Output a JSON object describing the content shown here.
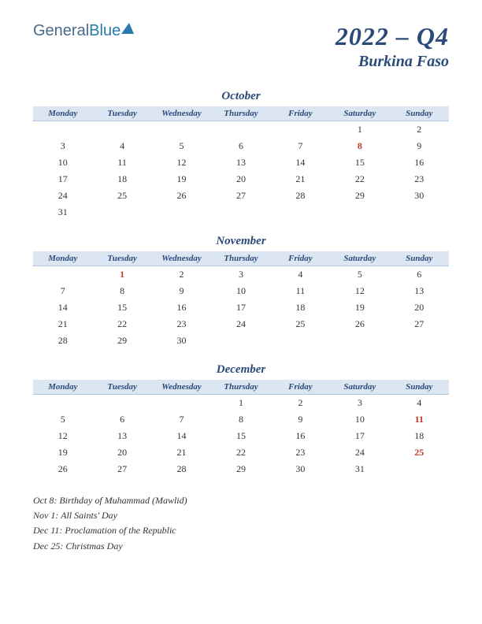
{
  "logo": {
    "part1": "General",
    "part2": "Blue"
  },
  "title": {
    "year_quarter": "2022 – Q4",
    "country": "Burkina Faso"
  },
  "day_headers": [
    "Monday",
    "Tuesday",
    "Wednesday",
    "Thursday",
    "Friday",
    "Saturday",
    "Sunday"
  ],
  "months": [
    {
      "name": "October",
      "weeks": [
        [
          "",
          "",
          "",
          "",
          "",
          "1",
          "2"
        ],
        [
          "3",
          "4",
          "5",
          "6",
          "7",
          "8",
          "9"
        ],
        [
          "10",
          "11",
          "12",
          "13",
          "14",
          "15",
          "16"
        ],
        [
          "17",
          "18",
          "19",
          "20",
          "21",
          "22",
          "23"
        ],
        [
          "24",
          "25",
          "26",
          "27",
          "28",
          "29",
          "30"
        ],
        [
          "31",
          "",
          "",
          "",
          "",
          "",
          ""
        ]
      ],
      "holidays": [
        "8"
      ]
    },
    {
      "name": "November",
      "weeks": [
        [
          "",
          "1",
          "2",
          "3",
          "4",
          "5",
          "6"
        ],
        [
          "7",
          "8",
          "9",
          "10",
          "11",
          "12",
          "13"
        ],
        [
          "14",
          "15",
          "16",
          "17",
          "18",
          "19",
          "20"
        ],
        [
          "21",
          "22",
          "23",
          "24",
          "25",
          "26",
          "27"
        ],
        [
          "28",
          "29",
          "30",
          "",
          "",
          "",
          ""
        ]
      ],
      "holidays": [
        "1"
      ]
    },
    {
      "name": "December",
      "weeks": [
        [
          "",
          "",
          "",
          "1",
          "2",
          "3",
          "4"
        ],
        [
          "5",
          "6",
          "7",
          "8",
          "9",
          "10",
          "11"
        ],
        [
          "12",
          "13",
          "14",
          "15",
          "16",
          "17",
          "18"
        ],
        [
          "19",
          "20",
          "21",
          "22",
          "23",
          "24",
          "25"
        ],
        [
          "26",
          "27",
          "28",
          "29",
          "30",
          "31",
          ""
        ]
      ],
      "holidays": [
        "11",
        "25"
      ]
    }
  ],
  "footnotes": [
    "Oct 8: Birthday of Muhammad (Mawlid)",
    "Nov 1: All Saints' Day",
    "Dec 11: Proclamation of the Republic",
    "Dec 25: Christmas Day"
  ],
  "colors": {
    "header_bg": "#dce6f2",
    "accent": "#2a4a7a",
    "holiday": "#c0392b"
  }
}
